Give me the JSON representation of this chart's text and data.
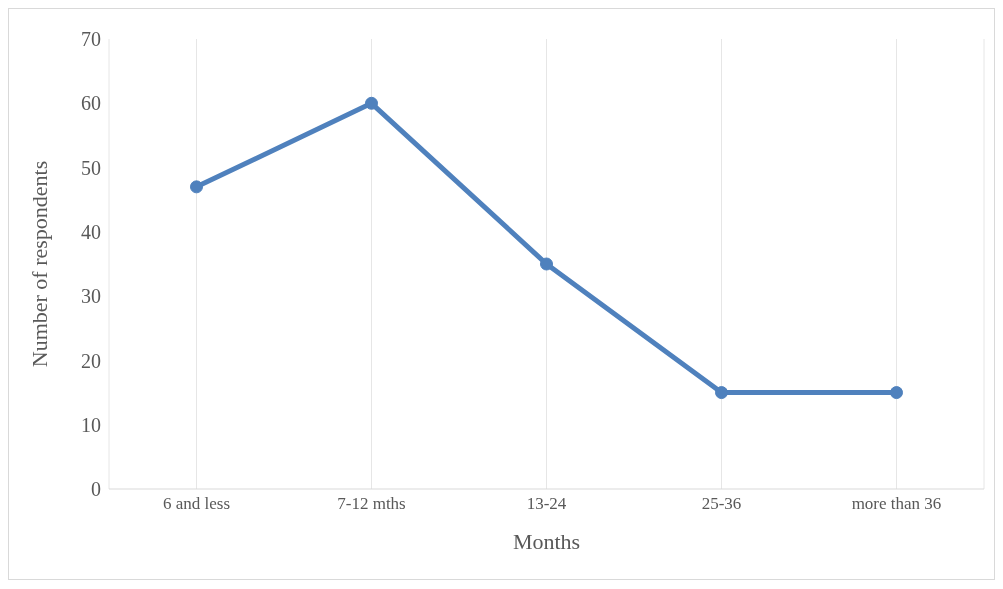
{
  "chart_data": {
    "type": "line",
    "xlabel": "Months",
    "ylabel": "Number of respondents",
    "categories": [
      "6 and less",
      "7-12 mths",
      "13-24",
      "25-36",
      "more than 36"
    ],
    "series": [
      {
        "color": "#4f81bd",
        "values": [
          47,
          60,
          35,
          15,
          15
        ]
      }
    ],
    "ylim": [
      0,
      70
    ],
    "yticks": [
      0,
      10,
      20,
      30,
      40,
      50,
      60,
      70
    ],
    "grid": "x",
    "legend": false,
    "marker": "circle",
    "line_style": "solid"
  }
}
